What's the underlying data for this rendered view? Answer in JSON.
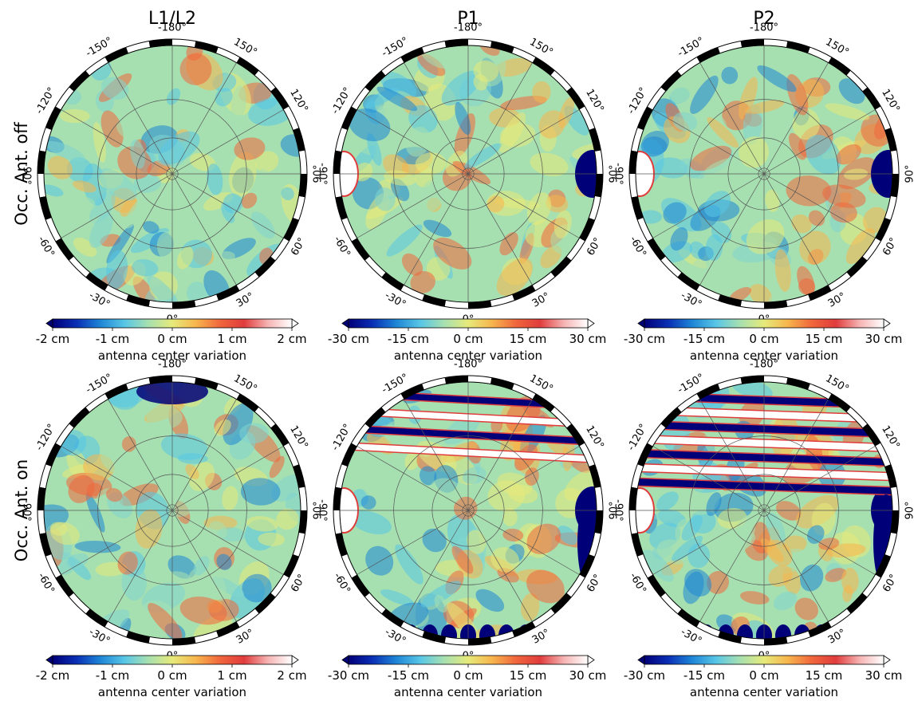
{
  "columns": [
    "L1/L2",
    "P1",
    "P2"
  ],
  "rows": [
    "Occ. Ant. off",
    "Occ. Ant. on"
  ],
  "colorbar_label": "antenna center variation",
  "colormap": [
    "#000078",
    "#0a2fb5",
    "#1e86d6",
    "#58c6e6",
    "#a7e0b0",
    "#e6ea7a",
    "#f7b54d",
    "#f0663c",
    "#e03c3c",
    "#f6b3b3",
    "#ffffff"
  ],
  "grid_color": "#555555",
  "chart_data": [
    {
      "type": "heatmap",
      "projection": "polar",
      "title": "L1/L2",
      "row_label": "Occ. Ant. off",
      "azimuth_ticks": [
        "-180°",
        "150°",
        "120°",
        "90°",
        "60°",
        "30°",
        "0°",
        "-30°",
        "-60°",
        "-90°",
        "-120°",
        "-150°"
      ],
      "colorbar": {
        "ticks": [
          "-2 cm",
          "-1 cm",
          "0 cm",
          "1 cm",
          "2 cm"
        ],
        "range": [
          -2,
          2
        ],
        "unit": "cm",
        "label": "antenna center variation"
      }
    },
    {
      "type": "heatmap",
      "projection": "polar",
      "title": "P1",
      "row_label": "Occ. Ant. off",
      "azimuth_ticks": [
        "-180°",
        "150°",
        "120°",
        "90°",
        "60°",
        "30°",
        "0°",
        "-30°",
        "-60°",
        "-90°",
        "-120°",
        "-150°"
      ],
      "colorbar": {
        "ticks": [
          "-30 cm",
          "-15 cm",
          "0 cm",
          "15 cm",
          "30 cm"
        ],
        "range": [
          -30,
          30
        ],
        "unit": "cm",
        "label": "antenna center variation"
      }
    },
    {
      "type": "heatmap",
      "projection": "polar",
      "title": "P2",
      "row_label": "Occ. Ant. off",
      "azimuth_ticks": [
        "-180°",
        "150°",
        "120°",
        "90°",
        "60°",
        "30°",
        "0°",
        "-30°",
        "-60°",
        "-90°",
        "-120°",
        "-150°"
      ],
      "colorbar": {
        "ticks": [
          "-30 cm",
          "-15 cm",
          "0 cm",
          "15 cm",
          "30 cm"
        ],
        "range": [
          -30,
          30
        ],
        "unit": "cm",
        "label": "antenna center variation"
      }
    },
    {
      "type": "heatmap",
      "projection": "polar",
      "title": "L1/L2",
      "row_label": "Occ. Ant. on",
      "azimuth_ticks": [
        "-180°",
        "150°",
        "120°",
        "90°",
        "60°",
        "30°",
        "0°",
        "-30°",
        "-60°",
        "-90°",
        "-120°",
        "-150°"
      ],
      "colorbar": {
        "ticks": [
          "-2 cm",
          "-1 cm",
          "0 cm",
          "1 cm",
          "2 cm"
        ],
        "range": [
          -2,
          2
        ],
        "unit": "cm",
        "label": "antenna center variation"
      }
    },
    {
      "type": "heatmap",
      "projection": "polar",
      "title": "P1",
      "row_label": "Occ. Ant. on",
      "azimuth_ticks": [
        "-180°",
        "150°",
        "120°",
        "90°",
        "60°",
        "30°",
        "0°",
        "-30°",
        "-60°",
        "-90°",
        "-120°",
        "-150°"
      ],
      "colorbar": {
        "ticks": [
          "-30 cm",
          "-15 cm",
          "0 cm",
          "15 cm",
          "30 cm"
        ],
        "range": [
          -30,
          30
        ],
        "unit": "cm",
        "label": "antenna center variation"
      }
    },
    {
      "type": "heatmap",
      "projection": "polar",
      "title": "P2",
      "row_label": "Occ. Ant. on",
      "azimuth_ticks": [
        "-180°",
        "150°",
        "120°",
        "90°",
        "60°",
        "30°",
        "0°",
        "-30°",
        "-60°",
        "-90°",
        "-120°",
        "-150°"
      ],
      "colorbar": {
        "ticks": [
          "-30 cm",
          "-15 cm",
          "0 cm",
          "15 cm",
          "30 cm"
        ],
        "range": [
          -30,
          30
        ],
        "unit": "cm",
        "label": "antenna center variation"
      }
    }
  ]
}
